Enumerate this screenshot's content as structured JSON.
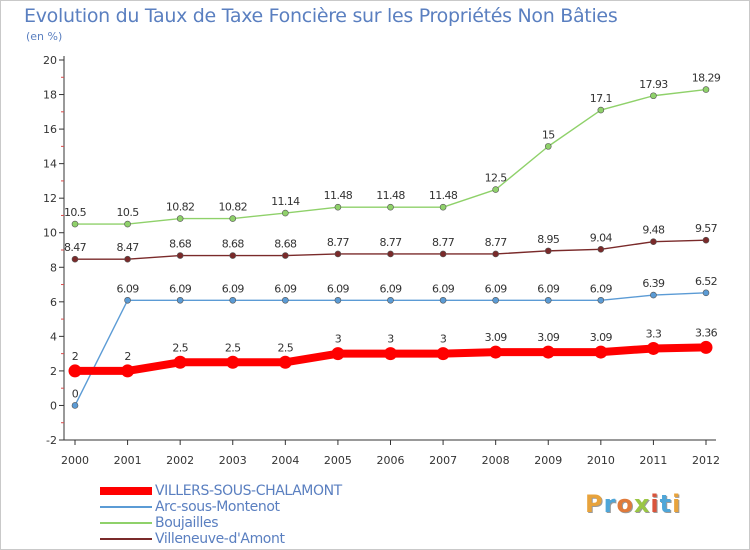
{
  "header": {
    "title": "Evolution du Taux de Taxe Foncière sur les Propriétés Non Bâties",
    "subtitle": "(en %)"
  },
  "logo": {
    "text": "Proxiti",
    "colors": [
      "#e8a33c",
      "#4fa6d8",
      "#e07a3a",
      "#9bc645",
      "#d9543b",
      "#4fa6d8",
      "#e8a33c"
    ]
  },
  "chart_data": {
    "type": "line",
    "title": "Evolution du Taux de Taxe Foncière sur les Propriétés Non Bâties",
    "ylabel": "(en %)",
    "xlabel": "",
    "ylim": [
      -2,
      20
    ],
    "yticks": [
      -2,
      0,
      2,
      4,
      6,
      8,
      10,
      12,
      14,
      16,
      18,
      20
    ],
    "x": [
      "2000",
      "2001",
      "2002",
      "2003",
      "2004",
      "2005",
      "2006",
      "2007",
      "2008",
      "2009",
      "2010",
      "2011",
      "2012"
    ],
    "grid": false,
    "legend_position": "bottom-left",
    "series": [
      {
        "name": "VILLERS-SOUS-CHALAMONT",
        "color": "#ff0000",
        "values": [
          2,
          2,
          2.5,
          2.5,
          2.5,
          3,
          3,
          3,
          3.09,
          3.09,
          3.09,
          3.3,
          3.36
        ],
        "labels": [
          "2",
          "2",
          "2.5",
          "2.5",
          "2.5",
          "3",
          "3",
          "3",
          "3.09",
          "3.09",
          "3.09",
          "3.3",
          "3.36"
        ]
      },
      {
        "name": "Arc-sous-Montenot",
        "color": "#5b9bd5",
        "values": [
          0,
          6.09,
          6.09,
          6.09,
          6.09,
          6.09,
          6.09,
          6.09,
          6.09,
          6.09,
          6.09,
          6.39,
          6.52
        ],
        "labels": [
          "0",
          "6.09",
          "6.09",
          "6.09",
          "6.09",
          "6.09",
          "6.09",
          "6.09",
          "6.09",
          "6.09",
          "6.09",
          "6.39",
          "6.52"
        ]
      },
      {
        "name": "Boujailles",
        "color": "#8fd16a",
        "values": [
          10.5,
          10.5,
          10.82,
          10.82,
          11.14,
          11.48,
          11.48,
          11.48,
          12.5,
          15,
          17.1,
          17.93,
          18.29
        ],
        "labels": [
          "10.5",
          "10.5",
          "10.82",
          "10.82",
          "11.14",
          "11.48",
          "11.48",
          "11.48",
          "12.5",
          "15",
          "17.1",
          "17.93",
          "18.29"
        ]
      },
      {
        "name": "Villeneuve-d'Amont",
        "color": "#7a2a2a",
        "values": [
          8.47,
          8.47,
          8.68,
          8.68,
          8.68,
          8.77,
          8.77,
          8.77,
          8.77,
          8.95,
          9.04,
          9.48,
          9.57
        ],
        "labels": [
          "8.47",
          "8.47",
          "8.68",
          "8.68",
          "8.68",
          "8.77",
          "8.77",
          "8.77",
          "8.77",
          "8.95",
          "9.04",
          "9.48",
          "9.57"
        ]
      }
    ]
  }
}
